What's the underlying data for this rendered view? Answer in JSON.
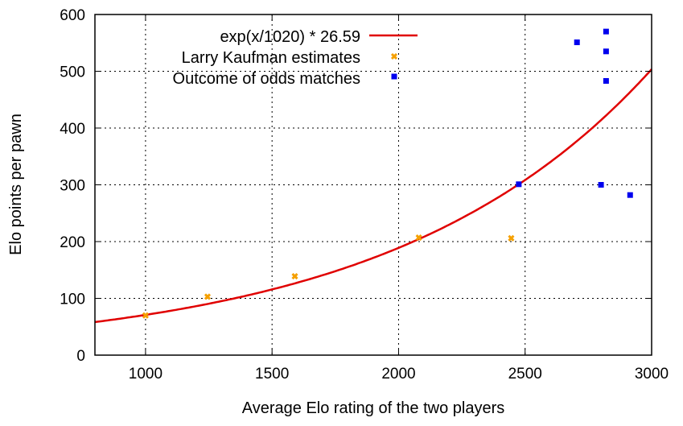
{
  "chart_data": {
    "type": "scatter",
    "xlabel": "Average Elo rating of the two players",
    "ylabel": "Elo points per pawn",
    "xlim": [
      800,
      3000
    ],
    "ylim": [
      0,
      600
    ],
    "x_ticks": [
      1000,
      1500,
      2000,
      2500,
      3000
    ],
    "y_ticks": [
      0,
      100,
      200,
      300,
      400,
      500,
      600
    ],
    "grid": true,
    "legend_position": "top-left",
    "series": [
      {
        "name": "exp(x/1020) * 26.59",
        "kind": "line",
        "color": "#e00000",
        "formula": "exp(x/1020) * 26.59",
        "x_range": [
          800,
          3000
        ]
      },
      {
        "name": "Larry Kaufman estimates",
        "kind": "points",
        "color": "#f5a000",
        "points": [
          [
            1000,
            70
          ],
          [
            1245,
            103
          ],
          [
            1590,
            139
          ],
          [
            2080,
            207
          ],
          [
            2445,
            206
          ]
        ]
      },
      {
        "name": "Outcome of odds matches",
        "kind": "points",
        "color": "#0000ee",
        "points": [
          [
            2475,
            301
          ],
          [
            2705,
            551
          ],
          [
            2820,
            570
          ],
          [
            2820,
            535
          ],
          [
            2820,
            483
          ],
          [
            2800,
            300
          ],
          [
            2915,
            282
          ]
        ]
      }
    ]
  }
}
